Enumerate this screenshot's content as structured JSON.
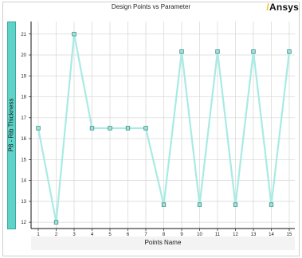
{
  "chart_data": {
    "type": "line",
    "title": "Design Points vs Parameter",
    "xlabel": "Points Name",
    "ylabel": "P8 - Rib Thickness",
    "categories": [
      "1",
      "2",
      "3",
      "4",
      "5",
      "6",
      "7",
      "8",
      "9",
      "10",
      "11",
      "12",
      "13",
      "14",
      "15"
    ],
    "values": [
      16.5,
      12.0,
      21.0,
      16.5,
      16.5,
      16.5,
      16.5,
      12.84,
      20.16,
      12.84,
      20.16,
      12.84,
      20.16,
      12.84,
      20.16
    ],
    "ylim": [
      11.7,
      21.6
    ],
    "yticks": [
      "12",
      "13",
      "14",
      "15",
      "16",
      "17",
      "18",
      "19",
      "20",
      "21"
    ],
    "grid": true,
    "colors": {
      "line": "#a8ebe4",
      "marker_fill": "#9fe3db",
      "marker_stroke": "#2d7f78"
    }
  },
  "brand": {
    "logo_text": "Ansys"
  }
}
